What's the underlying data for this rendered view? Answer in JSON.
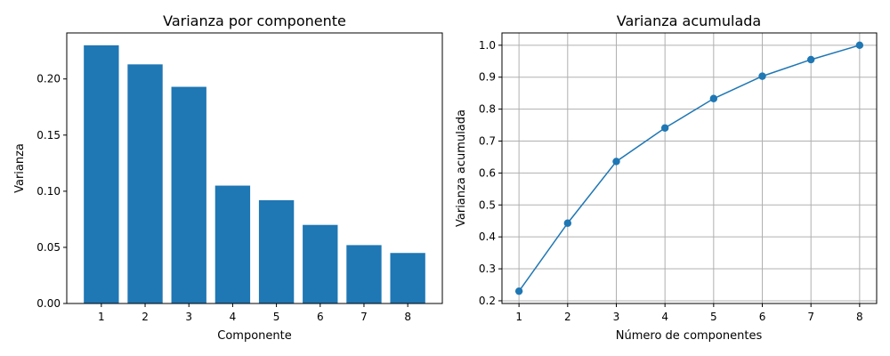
{
  "chart_data": [
    {
      "type": "bar",
      "title": "Varianza por componente",
      "xlabel": "Componente",
      "ylabel": "Varianza",
      "categories": [
        "1",
        "2",
        "3",
        "4",
        "5",
        "6",
        "7",
        "8"
      ],
      "values": [
        0.23,
        0.213,
        0.193,
        0.105,
        0.092,
        0.07,
        0.052,
        0.045
      ],
      "ylim": [
        0,
        0.241
      ],
      "yticks": [
        0.0,
        0.05,
        0.1,
        0.15,
        0.2
      ],
      "ytick_labels": [
        "0.00",
        "0.05",
        "0.10",
        "0.15",
        "0.20"
      ],
      "color": "#1f77b4",
      "grid": false
    },
    {
      "type": "line",
      "title": "Varianza acumulada",
      "xlabel": "Número de componentes",
      "ylabel": "Varianza acumulada",
      "x": [
        1,
        2,
        3,
        4,
        5,
        6,
        7,
        8
      ],
      "values": [
        0.23,
        0.443,
        0.636,
        0.741,
        0.833,
        0.903,
        0.955,
        1.0
      ],
      "xlim": [
        0.65,
        8.35
      ],
      "ylim": [
        0.1915,
        1.0385
      ],
      "xticks": [
        1,
        2,
        3,
        4,
        5,
        6,
        7,
        8
      ],
      "xtick_labels": [
        "1",
        "2",
        "3",
        "4",
        "5",
        "6",
        "7",
        "8"
      ],
      "yticks": [
        0.2,
        0.3,
        0.4,
        0.5,
        0.6,
        0.7,
        0.8,
        0.9,
        1.0
      ],
      "ytick_labels": [
        "0.2",
        "0.3",
        "0.4",
        "0.5",
        "0.6",
        "0.7",
        "0.8",
        "0.9",
        "1.0"
      ],
      "color": "#1f77b4",
      "marker": "circle",
      "grid": true
    }
  ]
}
